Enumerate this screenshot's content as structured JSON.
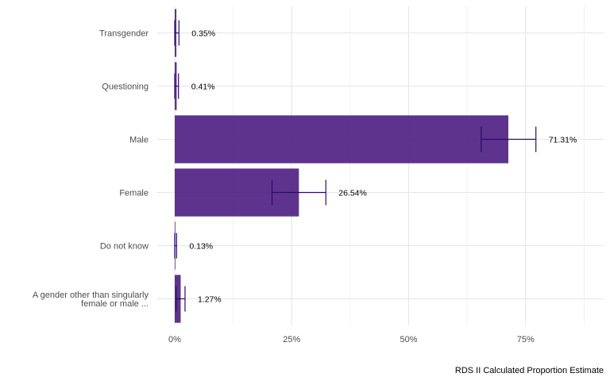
{
  "chart_data": {
    "type": "bar",
    "orientation": "horizontal",
    "categories": [
      [
        "A gender other than singularly",
        "female or male ..."
      ],
      [
        "Do not know"
      ],
      [
        "Female"
      ],
      [
        "Male"
      ],
      [
        "Questioning"
      ],
      [
        "Transgender"
      ]
    ],
    "values": [
      1.27,
      0.13,
      26.54,
      71.31,
      0.41,
      0.35
    ],
    "error_low": [
      0.3,
      0.0,
      20.8,
      65.5,
      0.0,
      0.0
    ],
    "error_high": [
      2.2,
      0.4,
      32.3,
      77.2,
      0.8,
      0.9
    ],
    "data_labels": [
      "1.27%",
      "0.13%",
      "26.54%",
      "71.31%",
      "0.41%",
      "0.35%"
    ],
    "xlabel": "RDS II Calculated Proportion Estimate",
    "ylabel": "",
    "xlim": [
      0,
      90
    ],
    "x_ticks": [
      0,
      25,
      50,
      75
    ],
    "x_tick_labels": [
      "0%",
      "25%",
      "50%",
      "75%"
    ],
    "grid": true,
    "bar_color": "#4b1d82",
    "error_color": "#2a0a6b"
  }
}
